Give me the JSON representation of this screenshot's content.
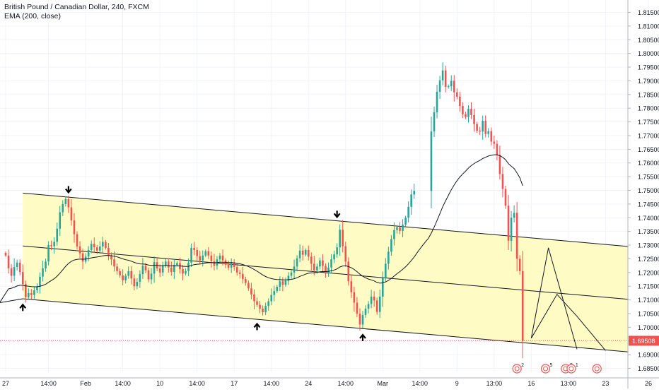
{
  "legend": {
    "symbol_line": "British Pound / Canadian Dollar, 240, FXCM",
    "indicator_line": "EMA (200, close)"
  },
  "colors": {
    "up": "#26a69a",
    "down": "#ef5350",
    "channel_fill": "#fffbc4",
    "line": "#131722",
    "grid": "#e6e6e6",
    "price_line": "#ef5350"
  },
  "icons": [
    "arrow-down-icon",
    "arrow-up-icon",
    "economic-event-icon"
  ],
  "chart_data": {
    "type": "candlestick",
    "instrument": "British Pound / Canadian Dollar",
    "interval": "240",
    "source": "FXCM",
    "y_range": [
      1.68,
      1.815
    ],
    "y_ticks": [
      "1.81500",
      "1.81000",
      "1.80500",
      "1.80000",
      "1.79500",
      "1.79000",
      "1.78500",
      "1.78000",
      "1.77500",
      "1.77000",
      "1.76500",
      "1.76000",
      "1.75500",
      "1.75000",
      "1.74500",
      "1.74000",
      "1.73500",
      "1.73000",
      "1.72500",
      "1.72000",
      "1.71500",
      "1.71000",
      "1.70500",
      "1.70000",
      "1.69500",
      "1.69000",
      "1.68500"
    ],
    "x_ticks": [
      {
        "label": "27",
        "bar": 0
      },
      {
        "label": "14:00",
        "bar": 15
      },
      {
        "label": "Feb",
        "bar": 28
      },
      {
        "label": "14:00",
        "bar": 41
      },
      {
        "label": "10",
        "bar": 54
      },
      {
        "label": "14:00",
        "bar": 67
      },
      {
        "label": "17",
        "bar": 80
      },
      {
        "label": "14:00",
        "bar": 93
      },
      {
        "label": "24",
        "bar": 106
      },
      {
        "label": "14:00",
        "bar": 119
      },
      {
        "label": "Mar",
        "bar": 132
      },
      {
        "label": "14:00",
        "bar": 145
      },
      {
        "label": "9",
        "bar": 158
      },
      {
        "label": "13:00",
        "bar": 171
      },
      {
        "label": "16",
        "bar": 184
      },
      {
        "label": "13:00",
        "bar": 197
      },
      {
        "label": "23",
        "bar": 210
      },
      {
        "label": "26",
        "bar": 225
      }
    ],
    "last_price": 1.69508,
    "last_price_label": "1.69508",
    "closes": [
      1.7262,
      1.7215,
      1.7188,
      1.722,
      1.7236,
      1.7202,
      1.7158,
      1.711,
      1.7125,
      1.7118,
      1.7135,
      1.7148,
      1.7185,
      1.7215,
      1.724,
      1.73,
      1.7296,
      1.7312,
      1.736,
      1.742,
      1.745,
      1.7468,
      1.7438,
      1.739,
      1.734,
      1.7295,
      1.727,
      1.724,
      1.7258,
      1.7282,
      1.7305,
      1.7292,
      1.728,
      1.7295,
      1.7312,
      1.729,
      1.726,
      1.7248,
      1.7222,
      1.7205,
      1.719,
      1.7172,
      1.7188,
      1.7205,
      1.7178,
      1.715,
      1.7166,
      1.7194,
      1.7225,
      1.7208,
      1.7175,
      1.7196,
      1.7238,
      1.7215,
      1.72,
      1.7226,
      1.724,
      1.7218,
      1.7202,
      1.7228,
      1.7235,
      1.7212,
      1.7196,
      1.7205,
      1.7236,
      1.729,
      1.7282,
      1.726,
      1.7244,
      1.7262,
      1.7278,
      1.7262,
      1.7241,
      1.7225,
      1.7248,
      1.7262,
      1.7244,
      1.7228,
      1.7218,
      1.7235,
      1.722,
      1.72,
      1.7195,
      1.7176,
      1.7162,
      1.7142,
      1.712,
      1.7095,
      1.7082,
      1.7068,
      1.7055,
      1.7078,
      1.7095,
      1.7118,
      1.7132,
      1.7148,
      1.7168,
      1.7155,
      1.717,
      1.7188,
      1.72,
      1.7222,
      1.7252,
      1.728,
      1.7265,
      1.7282,
      1.7258,
      1.7232,
      1.7208,
      1.7222,
      1.7244,
      1.7224,
      1.7196,
      1.7218,
      1.7248,
      1.7266,
      1.7292,
      1.7356,
      1.7296,
      1.724,
      1.7168,
      1.7128,
      1.709,
      1.705,
      1.701,
      1.7045,
      1.7068,
      1.7085,
      1.7112,
      1.7098,
      1.7056,
      1.7112,
      1.718,
      1.7232,
      1.7276,
      1.7322,
      1.7355,
      1.7365,
      1.7352,
      1.7375,
      1.74,
      1.744,
      1.7485,
      1.7498,
      null,
      null,
      null,
      null,
      null,
      1.7715,
      1.7785,
      1.786,
      1.7902,
      1.7938,
      1.7878,
      1.788,
      1.79,
      1.7858,
      1.7842,
      1.7808,
      1.7778,
      1.7768,
      1.7798,
      1.7775,
      1.7742,
      1.7718,
      1.7715,
      1.7754,
      1.7706,
      1.7716,
      1.7678,
      1.767,
      1.763,
      1.756,
      1.7505,
      1.7444,
      1.7316,
      1.74,
      1.7418,
      1.725,
      1.7205,
      1.695
    ]
  },
  "annotations": {
    "arrows_down": [
      {
        "bar": 22,
        "price": 1.7495
      },
      {
        "bar": 116,
        "price": 1.7405
      }
    ],
    "arrows_up": [
      {
        "bar": 6,
        "price": 1.708
      },
      {
        "bar": 88,
        "price": 1.701
      },
      {
        "bar": 125,
        "price": 1.697
      }
    ],
    "channel_upper": [
      {
        "bar": 6,
        "price": 1.749
      },
      {
        "bar": 218,
        "price": 1.7295
      }
    ],
    "channel_lower": [
      {
        "bar": 6,
        "price": 1.7104
      },
      {
        "bar": 218,
        "price": 1.691
      }
    ],
    "channel_mid": [
      {
        "bar": 6,
        "price": 1.7297
      },
      {
        "bar": 218,
        "price": 1.7102
      }
    ],
    "projection_path_1": [
      {
        "bar": 184,
        "price": 1.696
      },
      {
        "bar": 193,
        "price": 1.712
      },
      {
        "bar": 200,
        "price": 1.704
      },
      {
        "bar": 210,
        "price": 1.6915
      }
    ],
    "projection_path_2": [
      {
        "bar": 184,
        "price": 1.696
      },
      {
        "bar": 190,
        "price": 1.729
      },
      {
        "bar": 200,
        "price": 1.692
      }
    ]
  },
  "event_markers": [
    {
      "bar": 179,
      "count": "2"
    },
    {
      "bar": 189,
      "count": "5"
    },
    {
      "bar": 196,
      "count": "2"
    },
    {
      "bar": 198,
      "count": "1"
    },
    {
      "bar": 207,
      "count": ""
    }
  ]
}
